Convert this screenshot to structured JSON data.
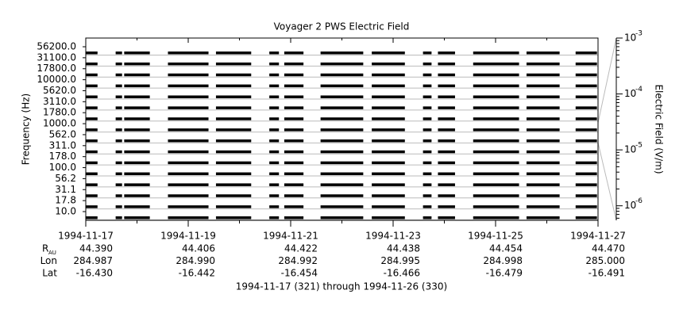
{
  "chart_data": {
    "type": "spectrogram",
    "title": "Voyager 2 PWS Electric Field",
    "y_label": "Frequency (Hz)",
    "y2_label": "Electric Field (V/m)",
    "footer": "1994-11-17 (321) through 1994-11-26 (330)",
    "channels": [
      "56200.0",
      "31100.0",
      "17800.0",
      "10000.0",
      "5620.0",
      "3110.0",
      "1780.0",
      "1000.0",
      "562.0",
      "311.0",
      "178.0",
      "100.0",
      "56.2",
      "31.1",
      "17.8",
      "10.0"
    ],
    "xlim": [
      "1994-11-17",
      "1994-11-27"
    ],
    "xticks": [
      "1994-11-17",
      "1994-11-19",
      "1994-11-21",
      "1994-11-23",
      "1994-11-25",
      "1994-11-27"
    ],
    "xminor": [
      "1994-11-18",
      "1994-11-20",
      "1994-11-22",
      "1994-11-24",
      "1994-11-26"
    ],
    "segments": [
      {
        "start": "1994-11-17T00:00",
        "end": "1994-11-17T05:30"
      },
      {
        "start": "1994-11-17T14:00",
        "end": "1994-11-17T17:00"
      },
      {
        "start": "1994-11-17T18:00",
        "end": "1994-11-18T06:00"
      },
      {
        "start": "1994-11-18T14:30",
        "end": "1994-11-19T09:30"
      },
      {
        "start": "1994-11-19T13:00",
        "end": "1994-11-20T05:30"
      },
      {
        "start": "1994-11-20T14:00",
        "end": "1994-11-20T18:30"
      },
      {
        "start": "1994-11-20T21:00",
        "end": "1994-11-21T06:00"
      },
      {
        "start": "1994-11-21T14:00",
        "end": "1994-11-22T10:00"
      },
      {
        "start": "1994-11-22T14:00",
        "end": "1994-11-23T05:30"
      },
      {
        "start": "1994-11-23T14:00",
        "end": "1994-11-23T18:00"
      },
      {
        "start": "1994-11-23T21:00",
        "end": "1994-11-24T05:00"
      },
      {
        "start": "1994-11-24T13:30",
        "end": "1994-11-25T11:00"
      },
      {
        "start": "1994-11-25T14:30",
        "end": "1994-11-26T06:00"
      },
      {
        "start": "1994-11-26T13:30",
        "end": "1994-11-26T23:30"
      }
    ],
    "color": "#000000",
    "y2lim": [
      5.5e-07,
      0.001
    ],
    "y2ticks": [
      {
        "value": 0.001,
        "label": "10",
        "exponent": "-3"
      },
      {
        "value": 0.0001,
        "label": "10",
        "exponent": "-4"
      },
      {
        "value": 1e-05,
        "label": "10",
        "exponent": "-5"
      },
      {
        "value": 1e-06,
        "label": "10",
        "exponent": "-6"
      }
    ],
    "y2scale": "log",
    "ephemeris": [
      {
        "label": "R",
        "sub": "AU",
        "values": [
          "44.390",
          "44.406",
          "44.422",
          "44.438",
          "44.454",
          "44.470"
        ]
      },
      {
        "label": "Lon",
        "values": [
          "284.987",
          "284.990",
          "284.992",
          "284.995",
          "284.998",
          "285.000"
        ]
      },
      {
        "label": "Lat",
        "values": [
          "-16.430",
          "-16.442",
          "-16.454",
          "-16.466",
          "-16.479",
          "-16.491"
        ]
      }
    ]
  }
}
